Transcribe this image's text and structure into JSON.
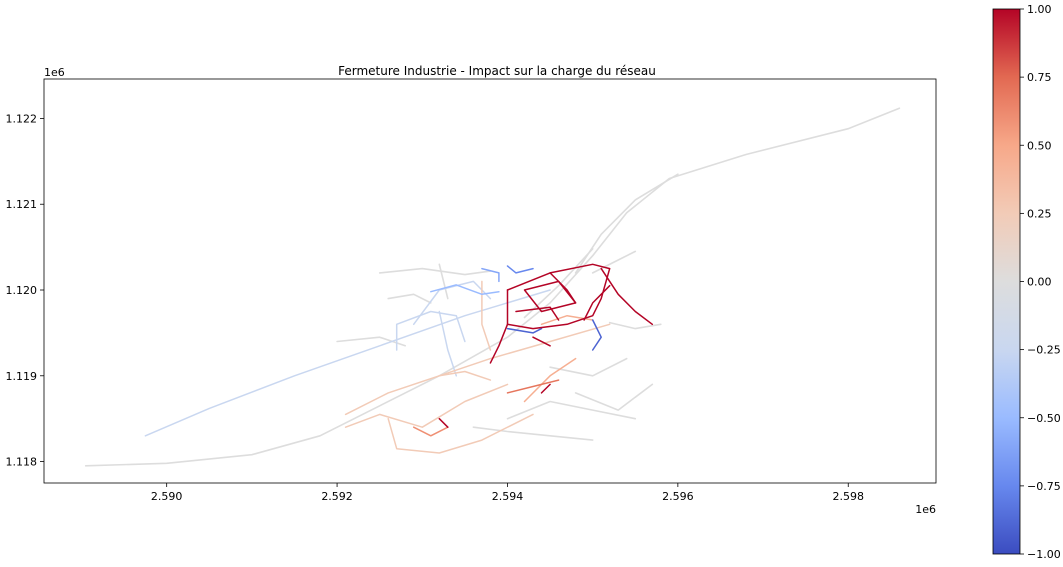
{
  "chart_data": {
    "type": "line",
    "title": "Fermeture Industrie - Impact sur la charge du réseau",
    "x_offset_label": "1e6",
    "y_offset_label": "1e6",
    "xlim": [
      2.58856,
      2.59903
    ],
    "ylim": [
      1.11775,
      1.12246
    ],
    "x_ticks": [
      {
        "value": 2.59,
        "label": "2.590"
      },
      {
        "value": 2.592,
        "label": "2.592"
      },
      {
        "value": 2.594,
        "label": "2.594"
      },
      {
        "value": 2.596,
        "label": "2.596"
      },
      {
        "value": 2.598,
        "label": "2.598"
      }
    ],
    "y_ticks": [
      {
        "value": 1.118,
        "label": "1.118"
      },
      {
        "value": 1.119,
        "label": "1.119"
      },
      {
        "value": 1.12,
        "label": "1.120"
      },
      {
        "value": 1.121,
        "label": "1.121"
      },
      {
        "value": 1.122,
        "label": "1.122"
      }
    ],
    "colorbar": {
      "colormap": "coolwarm",
      "range": [
        -1.0,
        1.0
      ],
      "ticks": [
        {
          "value": 1.0,
          "label": "1.00"
        },
        {
          "value": 0.75,
          "label": "0.75"
        },
        {
          "value": 0.5,
          "label": "0.50"
        },
        {
          "value": 0.25,
          "label": "0.25"
        },
        {
          "value": 0.0,
          "label": "0.00"
        },
        {
          "value": -0.25,
          "label": "−0.25"
        },
        {
          "value": -0.5,
          "label": "−0.50"
        },
        {
          "value": -0.75,
          "label": "−0.75"
        },
        {
          "value": -1.0,
          "label": "−1.00"
        }
      ],
      "stops": [
        "#3b4cc0",
        "#6788ee",
        "#9abbff",
        "#c9d7f0",
        "#dddddd",
        "#f2cbb7",
        "#f7a889",
        "#e26952",
        "#b40426"
      ]
    },
    "series": [
      {
        "value": 0.0,
        "points": [
          [
            2.58905,
            1.11795
          ],
          [
            2.59,
            1.11798
          ],
          [
            2.591,
            1.11808
          ],
          [
            2.5918,
            1.1183
          ],
          [
            2.5925,
            1.11865
          ],
          [
            2.5932,
            1.119
          ],
          [
            2.594,
            1.11945
          ],
          [
            2.5945,
            1.11985
          ],
          [
            2.595,
            1.1204
          ],
          [
            2.5954,
            1.1209
          ],
          [
            2.5959,
            1.1213
          ],
          [
            2.5968,
            1.12158
          ],
          [
            2.598,
            1.12188
          ],
          [
            2.5986,
            1.12212
          ]
        ]
      },
      {
        "value": 0.0,
        "points": [
          [
            2.5948,
            1.1202
          ],
          [
            2.5951,
            1.12065
          ],
          [
            2.5955,
            1.12105
          ],
          [
            2.596,
            1.12135
          ]
        ]
      },
      {
        "value": 0.0,
        "points": [
          [
            2.5942,
            1.11968
          ],
          [
            2.5946,
            1.12005
          ],
          [
            2.595,
            1.12048
          ]
        ]
      },
      {
        "value": 0.0,
        "points": [
          [
            2.5925,
            1.1202
          ],
          [
            2.593,
            1.12025
          ],
          [
            2.5935,
            1.12018
          ],
          [
            2.5938,
            1.12022
          ]
        ]
      },
      {
        "value": 0.0,
        "points": [
          [
            2.5926,
            1.1199
          ],
          [
            2.5929,
            1.11995
          ],
          [
            2.5931,
            1.11985
          ]
        ]
      },
      {
        "value": 0.0,
        "points": [
          [
            2.592,
            1.1194
          ],
          [
            2.5925,
            1.11945
          ],
          [
            2.5928,
            1.11935
          ]
        ]
      },
      {
        "value": 0.0,
        "points": [
          [
            2.5952,
            1.11962
          ],
          [
            2.5955,
            1.11955
          ],
          [
            2.5958,
            1.1196
          ]
        ]
      },
      {
        "value": 0.0,
        "points": [
          [
            2.5948,
            1.1188
          ],
          [
            2.5953,
            1.1186
          ],
          [
            2.5957,
            1.1189
          ]
        ]
      },
      {
        "value": 0.0,
        "points": [
          [
            2.594,
            1.1185
          ],
          [
            2.5945,
            1.1187
          ],
          [
            2.595,
            1.1186
          ],
          [
            2.5955,
            1.1185
          ]
        ]
      },
      {
        "value": 0.0,
        "points": [
          [
            2.5936,
            1.1184
          ],
          [
            2.594,
            1.11835
          ],
          [
            2.5945,
            1.1183
          ],
          [
            2.595,
            1.11825
          ]
        ]
      },
      {
        "value": 0.0,
        "points": [
          [
            2.5945,
            1.1191
          ],
          [
            2.595,
            1.119
          ],
          [
            2.5954,
            1.1192
          ]
        ]
      },
      {
        "value": 0.0,
        "points": [
          [
            2.595,
            1.1202
          ],
          [
            2.5953,
            1.12035
          ],
          [
            2.5955,
            1.12045
          ]
        ]
      },
      {
        "value": 0.0,
        "points": [
          [
            2.5932,
            1.1203
          ],
          [
            2.5933,
            1.1199
          ]
        ]
      },
      {
        "value": -0.25,
        "points": [
          [
            2.58975,
            1.1183
          ],
          [
            2.5905,
            1.11862
          ],
          [
            2.5915,
            1.119
          ],
          [
            2.5925,
            1.11935
          ],
          [
            2.5935,
            1.1197
          ],
          [
            2.5945,
            1.12
          ]
        ]
      },
      {
        "value": -0.25,
        "points": [
          [
            2.5927,
            1.1193
          ],
          [
            2.5927,
            1.1196
          ],
          [
            2.5931,
            1.11975
          ],
          [
            2.5934,
            1.1197
          ],
          [
            2.5935,
            1.1194
          ]
        ]
      },
      {
        "value": -0.25,
        "points": [
          [
            2.5929,
            1.1196
          ],
          [
            2.5932,
            1.12
          ],
          [
            2.5936,
            1.1201
          ],
          [
            2.5938,
            1.1199
          ]
        ]
      },
      {
        "value": -0.25,
        "points": [
          [
            2.5932,
            1.11975
          ],
          [
            2.5933,
            1.1193
          ],
          [
            2.5934,
            1.119
          ]
        ]
      },
      {
        "value": -0.5,
        "points": [
          [
            2.5931,
            1.11998
          ],
          [
            2.5934,
            1.12006
          ],
          [
            2.5937,
            1.11995
          ],
          [
            2.5939,
            1.11998
          ]
        ]
      },
      {
        "value": -0.6,
        "points": [
          [
            2.5937,
            1.12025
          ],
          [
            2.5939,
            1.1202
          ],
          [
            2.5939,
            1.1201
          ]
        ]
      },
      {
        "value": -0.75,
        "points": [
          [
            2.594,
            1.12028
          ],
          [
            2.5941,
            1.1202
          ],
          [
            2.5943,
            1.12025
          ]
        ]
      },
      {
        "value": -0.9,
        "points": [
          [
            2.594,
            1.11955
          ],
          [
            2.5943,
            1.1195
          ],
          [
            2.5944,
            1.11955
          ]
        ]
      },
      {
        "value": -0.9,
        "points": [
          [
            2.595,
            1.11965
          ],
          [
            2.5951,
            1.11945
          ],
          [
            2.595,
            1.1193
          ]
        ]
      },
      {
        "value": 0.25,
        "points": [
          [
            2.5921,
            1.11855
          ],
          [
            2.5926,
            1.1188
          ],
          [
            2.5932,
            1.119
          ],
          [
            2.5938,
            1.1192
          ],
          [
            2.5945,
            1.1194
          ],
          [
            2.5952,
            1.1196
          ]
        ]
      },
      {
        "value": 0.25,
        "points": [
          [
            2.5921,
            1.1184
          ],
          [
            2.5925,
            1.11855
          ],
          [
            2.593,
            1.1184
          ],
          [
            2.5935,
            1.1187
          ],
          [
            2.594,
            1.1189
          ]
        ]
      },
      {
        "value": 0.25,
        "points": [
          [
            2.5926,
            1.1185
          ],
          [
            2.5927,
            1.11815
          ],
          [
            2.5932,
            1.1181
          ],
          [
            2.5937,
            1.11825
          ],
          [
            2.5943,
            1.11855
          ]
        ]
      },
      {
        "value": 0.25,
        "points": [
          [
            2.5932,
            1.119
          ],
          [
            2.5935,
            1.11905
          ],
          [
            2.5938,
            1.11895
          ]
        ]
      },
      {
        "value": 0.25,
        "points": [
          [
            2.5937,
            1.1201
          ],
          [
            2.5937,
            1.1196
          ],
          [
            2.5938,
            1.1193
          ]
        ]
      },
      {
        "value": 0.45,
        "points": [
          [
            2.5944,
            1.1196
          ],
          [
            2.5947,
            1.1197
          ],
          [
            2.595,
            1.11965
          ]
        ]
      },
      {
        "value": 0.45,
        "points": [
          [
            2.5942,
            1.1187
          ],
          [
            2.5945,
            1.119
          ],
          [
            2.5948,
            1.1192
          ]
        ]
      },
      {
        "value": 0.6,
        "points": [
          [
            2.5929,
            1.1184
          ],
          [
            2.5931,
            1.1183
          ],
          [
            2.5933,
            1.1184
          ]
        ]
      },
      {
        "value": 0.7,
        "points": [
          [
            2.594,
            1.1188
          ],
          [
            2.5944,
            1.1189
          ],
          [
            2.5946,
            1.11895
          ]
        ]
      },
      {
        "value": 1.0,
        "points": [
          [
            2.594,
            1.12
          ],
          [
            2.594,
            1.1196
          ],
          [
            2.5939,
            1.11935
          ],
          [
            2.5938,
            1.11915
          ]
        ]
      },
      {
        "value": 1.0,
        "points": [
          [
            2.594,
            1.12
          ],
          [
            2.5945,
            1.1202
          ],
          [
            2.595,
            1.1203
          ],
          [
            2.5952,
            1.12025
          ],
          [
            2.5951,
            1.1199
          ],
          [
            2.595,
            1.1197
          ],
          [
            2.5947,
            1.1196
          ],
          [
            2.5943,
            1.11955
          ],
          [
            2.594,
            1.1196
          ]
        ]
      },
      {
        "value": 1.0,
        "points": [
          [
            2.5942,
            1.12
          ],
          [
            2.5946,
            1.1201
          ],
          [
            2.5948,
            1.11985
          ],
          [
            2.5944,
            1.11975
          ],
          [
            2.5942,
            1.12
          ]
        ]
      },
      {
        "value": 1.0,
        "points": [
          [
            2.5945,
            1.1202
          ],
          [
            2.5947,
            1.12
          ],
          [
            2.5948,
            1.11985
          ]
        ]
      },
      {
        "value": 1.0,
        "points": [
          [
            2.5951,
            1.12025
          ],
          [
            2.5953,
            1.11995
          ],
          [
            2.5955,
            1.11975
          ],
          [
            2.5957,
            1.1196
          ]
        ]
      },
      {
        "value": 1.0,
        "points": [
          [
            2.5949,
            1.11965
          ],
          [
            2.595,
            1.11985
          ],
          [
            2.5952,
            1.12005
          ]
        ]
      },
      {
        "value": 1.0,
        "points": [
          [
            2.5941,
            1.11975
          ],
          [
            2.5945,
            1.1198
          ],
          [
            2.5946,
            1.11965
          ]
        ]
      },
      {
        "value": 1.0,
        "points": [
          [
            2.5943,
            1.11945
          ],
          [
            2.5945,
            1.11935
          ]
        ]
      },
      {
        "value": 1.0,
        "points": [
          [
            2.5932,
            1.1185
          ],
          [
            2.5933,
            1.1184
          ]
        ]
      },
      {
        "value": 1.0,
        "points": [
          [
            2.5944,
            1.1188
          ],
          [
            2.5945,
            1.1189
          ]
        ]
      }
    ]
  }
}
